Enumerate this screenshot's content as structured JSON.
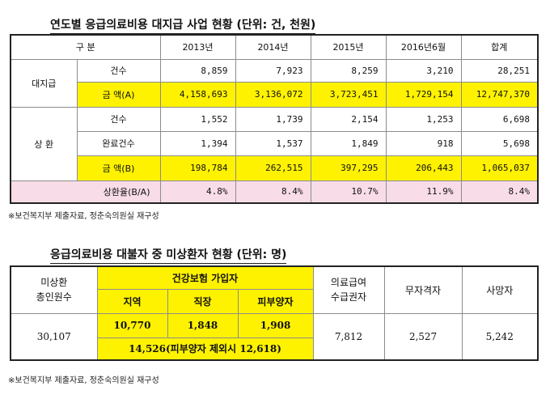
{
  "table1": {
    "title": "연도별 응급의료비용 대지급 사업 현황 (단위: 건, 천원)",
    "header": [
      "구 분",
      "2013년",
      "2014년",
      "2015년",
      "2016년6월",
      "합계"
    ],
    "groups": {
      "advance": "대지급",
      "repay": "상 환"
    },
    "rows": [
      {
        "label": "건수",
        "values": [
          "8,859",
          "7,923",
          "8,259",
          "3,210",
          "28,251"
        ]
      },
      {
        "label": "금 액(A)",
        "values": [
          "4,158,693",
          "3,136,072",
          "3,723,451",
          "1,729,154",
          "12,747,370"
        ]
      },
      {
        "label": "건수",
        "values": [
          "1,552",
          "1,739",
          "2,154",
          "1,253",
          "6,698"
        ]
      },
      {
        "label": "완료건수",
        "values": [
          "1,394",
          "1,537",
          "1,849",
          "918",
          "5,698"
        ]
      },
      {
        "label": "금 액(B)",
        "values": [
          "198,784",
          "262,515",
          "397,295",
          "206,443",
          "1,065,037"
        ]
      },
      {
        "label": "상환율(B/A)",
        "values": [
          "4.8%",
          "8.4%",
          "10.7%",
          "11.9%",
          "8.4%"
        ]
      }
    ],
    "note": "※보건복지부 제출자료, 정춘숙의원실 재구성"
  },
  "table2": {
    "title": "응급의료비용 대불자 중 미상환자 현황 (단위: 명)",
    "col_total": "미상환\n총인원수",
    "col_insured": "건강보험 가입자",
    "sub_region": "지역",
    "sub_work": "직장",
    "sub_dep": "피부양자",
    "col_medaid": "의료급여\n수급권자",
    "col_noqual": "무자격자",
    "col_dead": "사망자",
    "total": "30,107",
    "region": "10,770",
    "work": "1,848",
    "dep": "1,908",
    "insured_sum": "14,526(피부양자 제외시 12,618)",
    "medaid": "7,812",
    "noqual": "2,527",
    "dead": "5,242",
    "note": "※보건복지부 제출자료, 정춘숙의원실 재구성"
  }
}
